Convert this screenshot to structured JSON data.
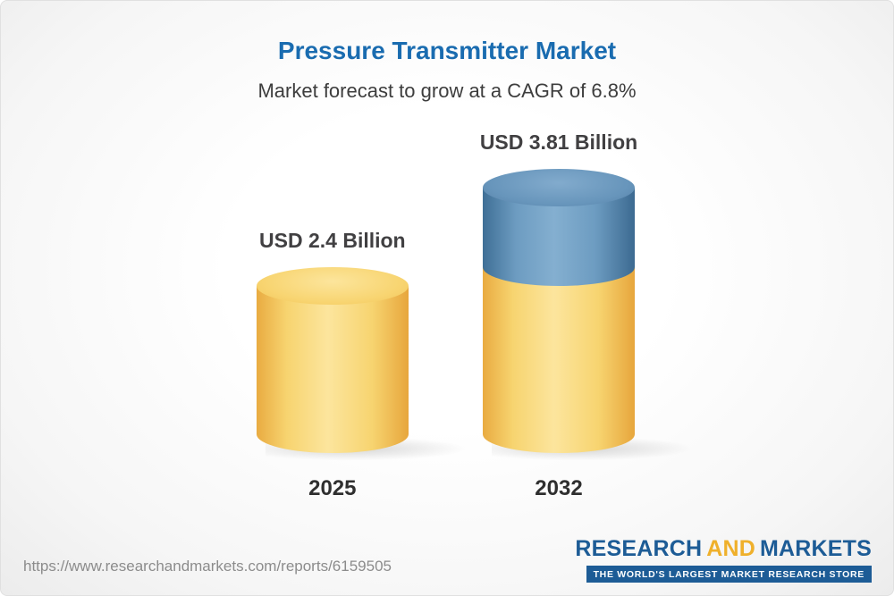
{
  "header": {
    "title": "Pressure Transmitter Market",
    "subtitle": "Market forecast to grow at a CAGR of 6.8%"
  },
  "chart_data": {
    "type": "bar",
    "title": "Pressure Transmitter Market",
    "subtitle": "Market forecast to grow at a CAGR of 6.8%",
    "cagr": "6.8%",
    "unit": "USD Billion",
    "categories": [
      "2025",
      "2032"
    ],
    "values": [
      2.4,
      3.81
    ],
    "value_labels": [
      "USD 2.4 Billion",
      "USD 3.81 Billion"
    ],
    "ylim": [
      0,
      4
    ],
    "grid": false,
    "legend": "none",
    "colors": {
      "base_segment": "#F6CE62",
      "growth_segment": "#6195BD"
    },
    "bars": [
      {
        "category": "2025",
        "label": "USD 2.4 Billion",
        "total": 2.4,
        "segments": [
          {
            "name": "base",
            "value": 2.4,
            "color": "yellow"
          }
        ]
      },
      {
        "category": "2032",
        "label": "USD 3.81 Billion",
        "total": 3.81,
        "segments": [
          {
            "name": "growth",
            "value": 1.41,
            "color": "blue"
          },
          {
            "name": "base",
            "value": 2.4,
            "color": "yellow"
          }
        ]
      }
    ]
  },
  "footer": {
    "url": "https://www.researchandmarkets.com/reports/6159505",
    "logo": {
      "part1": "RESEARCH",
      "part2": "AND",
      "part3": "MARKETS",
      "tagline": "THE WORLD'S LARGEST MARKET RESEARCH STORE"
    }
  }
}
